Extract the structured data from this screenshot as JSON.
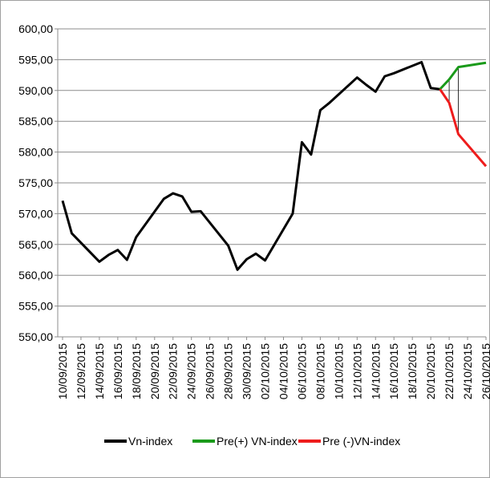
{
  "chart_data": {
    "type": "line",
    "x": [
      "10/09/2015",
      "11/09/2015",
      "14/09/2015",
      "15/09/2015",
      "16/09/2015",
      "17/09/2015",
      "18/09/2015",
      "21/09/2015",
      "22/09/2015",
      "23/09/2015",
      "24/09/2015",
      "25/09/2015",
      "28/09/2015",
      "29/09/2015",
      "30/09/2015",
      "01/10/2015",
      "02/10/2015",
      "05/10/2015",
      "06/10/2015",
      "07/10/2015",
      "08/10/2015",
      "09/10/2015",
      "12/10/2015",
      "13/10/2015",
      "14/10/2015",
      "15/10/2015",
      "16/10/2015",
      "19/10/2015",
      "20/10/2015",
      "21/10/2015",
      "22/10/2015",
      "23/10/2015",
      "26/10/2015"
    ],
    "series": [
      {
        "name": "Vn-index",
        "color": "#000000",
        "values": [
          572.1,
          566.8,
          562.2,
          563.3,
          564.1,
          562.5,
          566.2,
          572.4,
          573.3,
          572.8,
          570.3,
          570.4,
          564.8,
          560.9,
          562.6,
          563.5,
          562.4,
          570.0,
          581.6,
          579.6,
          586.8,
          588.0,
          592.1,
          590.9,
          589.8,
          592.3,
          592.8,
          594.6,
          590.4,
          590.2,
          null,
          null,
          null
        ]
      },
      {
        "name": "Pre(+) VN-index",
        "color": "#1a9a1a",
        "values": [
          null,
          null,
          null,
          null,
          null,
          null,
          null,
          null,
          null,
          null,
          null,
          null,
          null,
          null,
          null,
          null,
          null,
          null,
          null,
          null,
          null,
          null,
          null,
          null,
          null,
          null,
          null,
          null,
          null,
          590.2,
          591.8,
          593.8,
          594.5
        ]
      },
      {
        "name": "Pre (-)VN-index",
        "color": "#ee1c1c",
        "values": [
          null,
          null,
          null,
          null,
          null,
          null,
          null,
          null,
          null,
          null,
          null,
          null,
          null,
          null,
          null,
          null,
          null,
          null,
          null,
          null,
          null,
          null,
          null,
          null,
          null,
          null,
          null,
          null,
          null,
          590.2,
          588.0,
          582.9,
          577.7
        ]
      }
    ],
    "xticks": [
      "10/09/2015",
      "12/09/2015",
      "14/09/2015",
      "16/09/2015",
      "18/09/2015",
      "20/09/2015",
      "22/09/2015",
      "24/09/2015",
      "26/09/2015",
      "28/09/2015",
      "30/09/2015",
      "02/10/2015",
      "04/10/2015",
      "06/10/2015",
      "08/10/2015",
      "10/10/2015",
      "12/10/2015",
      "14/10/2015",
      "16/10/2015",
      "18/10/2015",
      "20/10/2015",
      "22/10/2015",
      "24/10/2015",
      "26/10/2015"
    ],
    "ylim": [
      550,
      600
    ],
    "yticks": [
      {
        "value": 550,
        "label": "550,00"
      },
      {
        "value": 555,
        "label": "555,00"
      },
      {
        "value": 560,
        "label": "560,00"
      },
      {
        "value": 565,
        "label": "565,00"
      },
      {
        "value": 570,
        "label": "570,00"
      },
      {
        "value": 575,
        "label": "575,00"
      },
      {
        "value": 580,
        "label": "580,00"
      },
      {
        "value": 585,
        "label": "585,00"
      },
      {
        "value": 590,
        "label": "590,00"
      },
      {
        "value": 595,
        "label": "595,00"
      },
      {
        "value": 600,
        "label": "600,00"
      }
    ],
    "grid": true,
    "legend": "bottom"
  }
}
